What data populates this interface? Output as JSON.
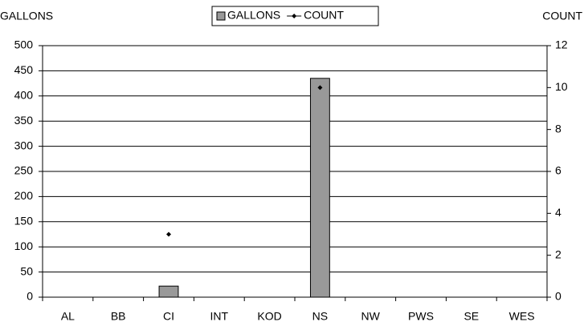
{
  "chart_data": {
    "type": "bar_line",
    "y_label": "GALLONS",
    "y2_label": "COUNT",
    "categories": [
      "AL",
      "BB",
      "CI",
      "INT",
      "KOD",
      "NS",
      "NW",
      "PWS",
      "SE",
      "WES"
    ],
    "series": [
      {
        "name": "GALLONS",
        "type": "bar",
        "color": "#999999",
        "values": [
          0,
          0,
          22,
          0,
          0,
          435,
          0,
          0,
          0,
          0
        ]
      },
      {
        "name": "COUNT",
        "type": "line",
        "axis": "y2",
        "color": "#000000",
        "values": [
          null,
          null,
          3,
          null,
          null,
          10,
          null,
          null,
          null,
          null
        ]
      }
    ],
    "ylim": [
      0,
      500
    ],
    "yticks": [
      0,
      50,
      100,
      150,
      200,
      250,
      300,
      350,
      400,
      450,
      500
    ],
    "y2lim": [
      0,
      12
    ],
    "y2ticks": [
      0,
      2,
      4,
      6,
      8,
      10,
      12
    ],
    "grid": true,
    "legend": "top"
  }
}
